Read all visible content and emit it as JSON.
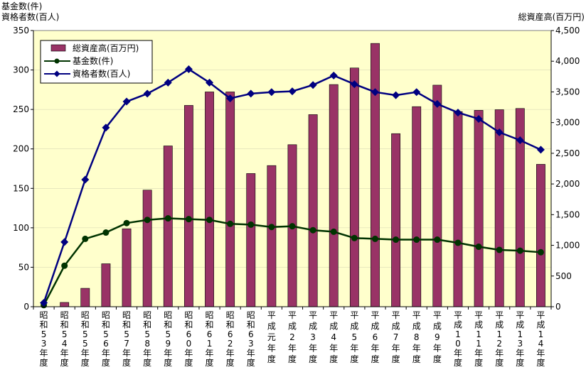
{
  "chart_data": {
    "type": "bar+line",
    "left_axis_title_line1": "基金数(件)",
    "left_axis_title_line2": "資格者数(百人)",
    "right_axis_title": "総資産高(百万円)",
    "ylim_left": [
      0,
      350
    ],
    "yticks_left": [
      0,
      50,
      100,
      150,
      200,
      250,
      300,
      350
    ],
    "ylim_right": [
      0,
      4500
    ],
    "yticks_right_labels": [
      "0",
      "500",
      "1,000",
      "1,500",
      "2,000",
      "2,500",
      "3,000",
      "3,500",
      "4,000",
      "4,500"
    ],
    "yticks_right": [
      0,
      500,
      1000,
      1500,
      2000,
      2500,
      3000,
      3500,
      4000,
      4500
    ],
    "categories": [
      "昭和53年度",
      "昭和54年度",
      "昭和55年度",
      "昭和56年度",
      "昭和57年度",
      "昭和58年度",
      "昭和59年度",
      "昭和60年度",
      "昭和61年度",
      "昭和62年度",
      "昭和63年度",
      "平成元年度",
      "平成2年度",
      "平成3年度",
      "平成4年度",
      "平成5年度",
      "平成6年度",
      "平成7年度",
      "平成8年度",
      "平成9年度",
      "平成10年度",
      "平成11年度",
      "平成12年度",
      "平成13年度",
      "平成14年度"
    ],
    "series": [
      {
        "name": "総資産高(百万円)",
        "type": "bar",
        "axis": "right",
        "color": "#993366",
        "values": [
          0,
          70,
          300,
          700,
          1270,
          1900,
          2620,
          3280,
          3500,
          3500,
          2170,
          2300,
          2640,
          3130,
          3620,
          3890,
          4290,
          2820,
          3260,
          3610,
          3180,
          3200,
          3210,
          3230,
          2320
        ]
      },
      {
        "name": "基金数(件)",
        "type": "line",
        "axis": "left",
        "color": "#003300",
        "marker": "circle",
        "values": [
          2,
          52,
          86,
          94,
          106,
          110,
          112,
          111,
          110,
          105,
          104,
          101,
          102,
          97,
          95,
          87,
          86,
          85,
          85,
          85,
          81,
          76,
          72,
          71,
          69
        ]
      },
      {
        "name": "資格者数(百人)",
        "type": "line",
        "axis": "left",
        "color": "#000080",
        "marker": "diamond",
        "values": [
          5,
          82,
          161,
          227,
          260,
          270,
          284,
          301,
          284,
          264,
          270,
          272,
          273,
          281,
          293,
          282,
          272,
          268,
          272,
          257,
          246,
          238,
          221,
          211,
          199
        ]
      }
    ],
    "legend_position": "top-left",
    "plot_background": "#ffffcc"
  }
}
